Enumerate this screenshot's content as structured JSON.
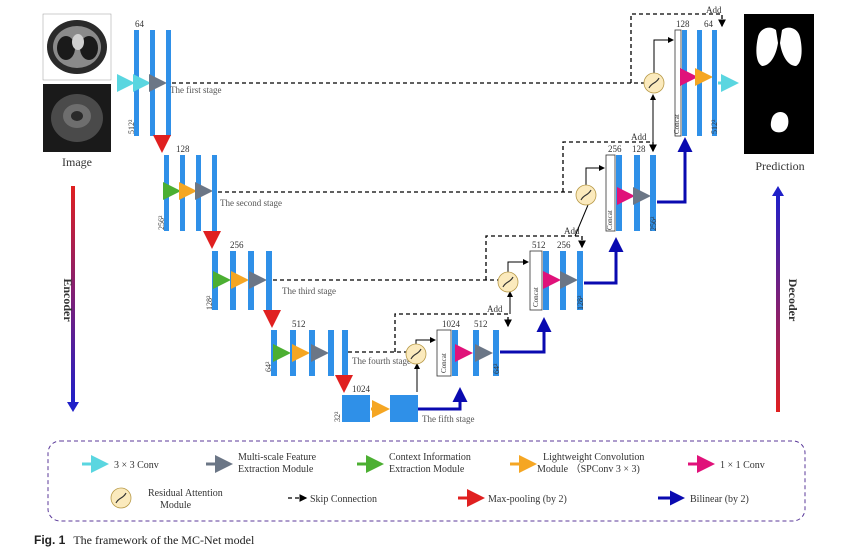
{
  "inputs": {
    "label": "Image"
  },
  "output": {
    "label": "Prediction"
  },
  "encoder_label": "Encoder",
  "decoder_label": "Decoder",
  "stages": {
    "first": "The first stage",
    "second": "The second stage",
    "third": "The third stage",
    "fourth": "The fourth stage",
    "fifth": "The fifth stage"
  },
  "channels": {
    "c64": "64",
    "c128": "128",
    "c256": "256",
    "c512": "512",
    "c1024": "1024"
  },
  "resolutions": {
    "r512": "512²",
    "r256": "256²",
    "r128": "128²",
    "r64": "64²",
    "r32": "32²"
  },
  "concat_label": "Concat",
  "add_label": "Add",
  "legend": {
    "conv3": "3 × 3 Conv",
    "msfe_1": "Multi-scale Feature",
    "msfe_2": "Extraction Module",
    "ciem_1": "Context Information",
    "ciem_2": "Extraction Module",
    "lcm_1": "Lightweight Convolution",
    "lcm_2": "Module （SPConv  3 × 3)",
    "conv1": "1 × 1 Conv",
    "ram_1": "Residual Attention",
    "ram_2": "Module",
    "skip": "Skip Connection",
    "maxpool": "Max-pooling (by 2)",
    "bilinear": "Bilinear (by 2)"
  },
  "colors": {
    "conv3": "#5ad6e0",
    "msfe": "#6b7686",
    "ciem": "#4caf32",
    "lcm": "#f5a623",
    "conv1": "#e0127a",
    "maxpool": "#e02020",
    "bilinear": "#0a0ab0",
    "feature_map": "#2f90e8",
    "legend_border": "#5b3a9a"
  },
  "caption": {
    "fig": "Fig. 1",
    "text": "The framework of the MC-Net model"
  }
}
